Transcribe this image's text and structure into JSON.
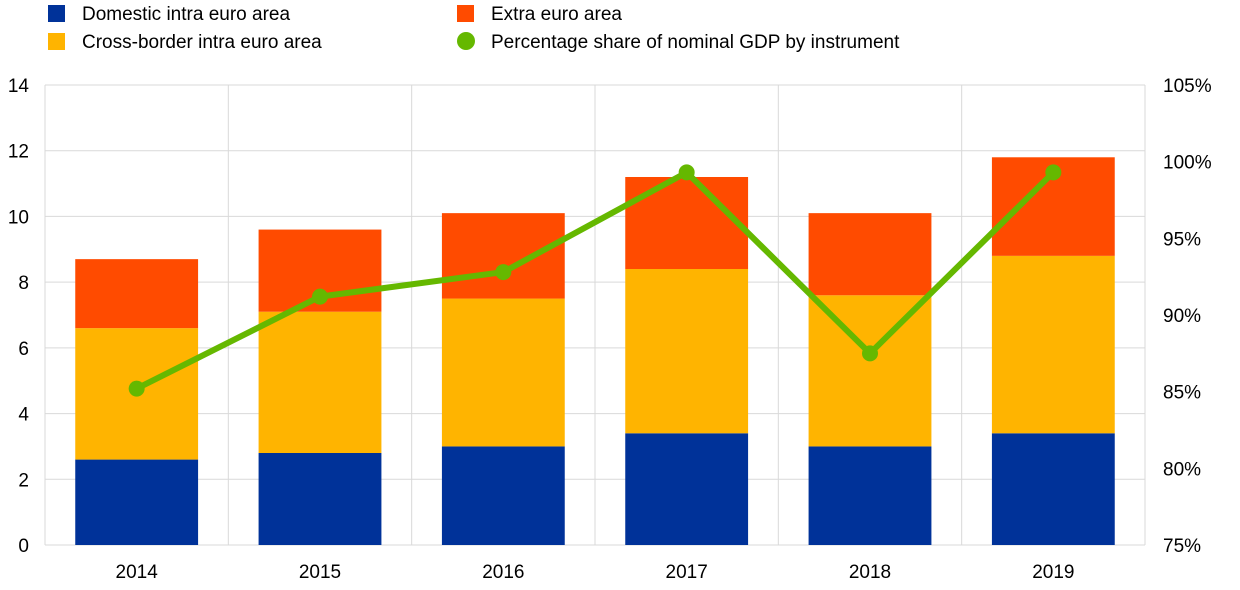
{
  "chart_data": {
    "type": "bar",
    "stacked": true,
    "categories": [
      "2014",
      "2015",
      "2016",
      "2017",
      "2018",
      "2019"
    ],
    "series": [
      {
        "name": "Domestic intra euro area",
        "type": "bar",
        "axis": "left",
        "color": "#003299",
        "values": [
          2.6,
          2.8,
          3.0,
          3.4,
          3.0,
          3.4
        ]
      },
      {
        "name": "Cross-border intra  euro area",
        "type": "bar",
        "axis": "left",
        "color": "#FFB400",
        "values": [
          4.0,
          4.3,
          4.5,
          5.0,
          4.6,
          5.4
        ]
      },
      {
        "name": "Extra euro area",
        "type": "bar",
        "axis": "left",
        "color": "#FF4B00",
        "values": [
          2.1,
          2.5,
          2.6,
          2.8,
          2.5,
          3.0
        ]
      },
      {
        "name": "Percentage share of nominal GDP by instrument",
        "type": "line",
        "axis": "right",
        "color": "#65B800",
        "values": [
          85.2,
          91.2,
          92.8,
          99.3,
          87.5,
          99.3
        ]
      }
    ],
    "ylim": [
      0,
      14
    ],
    "yticks": [
      "0",
      "2",
      "4",
      "6",
      "8",
      "10",
      "12",
      "14"
    ],
    "y2lim": [
      75,
      105
    ],
    "y2ticks": [
      "75%",
      "80%",
      "85%",
      "90%",
      "95%",
      "100%",
      "105%"
    ],
    "grid": true,
    "legend_placement": "top"
  }
}
